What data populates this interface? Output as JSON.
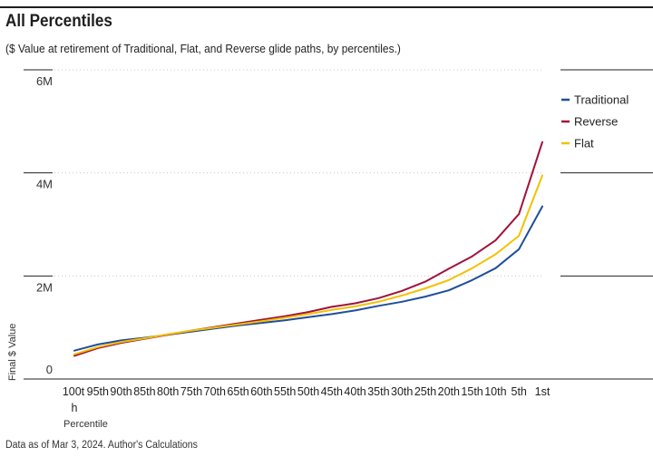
{
  "header": {
    "title": "All Percentiles",
    "subtitle": "($ Value at retirement of Traditional, Flat, and Reverse glide paths, by percentiles.)"
  },
  "footer": {
    "note": "Data as of Mar 3, 2024. Author's Calculations"
  },
  "chart_data": {
    "type": "line",
    "title": "All Percentiles",
    "xlabel": "Percentile",
    "ylabel": "Final $ Value",
    "categories": [
      "100th",
      "95th",
      "90th",
      "85th",
      "80th",
      "75th",
      "70th",
      "65th",
      "60th",
      "55th",
      "50th",
      "45th",
      "40th",
      "35th",
      "30th",
      "25th",
      "20th",
      "15th",
      "10th",
      "5th",
      "1st"
    ],
    "ylim": [
      0,
      6000000
    ],
    "y_ticks": [
      {
        "value": 0,
        "label": "0"
      },
      {
        "value": 2000000,
        "label": "2M"
      },
      {
        "value": 4000000,
        "label": "4M"
      },
      {
        "value": 6000000,
        "label": "6M"
      }
    ],
    "grid": true,
    "legend_position": "right",
    "series": [
      {
        "name": "Traditional",
        "color": "#1f4e9c",
        "values": [
          550000,
          670000,
          750000,
          800000,
          860000,
          920000,
          980000,
          1040000,
          1090000,
          1140000,
          1200000,
          1260000,
          1330000,
          1420000,
          1500000,
          1600000,
          1720000,
          1920000,
          2150000,
          2520000,
          3350000
        ]
      },
      {
        "name": "Reverse",
        "color": "#a0123b",
        "values": [
          450000,
          600000,
          700000,
          780000,
          860000,
          940000,
          1010000,
          1080000,
          1150000,
          1220000,
          1300000,
          1400000,
          1470000,
          1570000,
          1710000,
          1890000,
          2140000,
          2380000,
          2690000,
          3200000,
          4600000
        ]
      },
      {
        "name": "Flat",
        "color": "#f2c100",
        "values": [
          480000,
          620000,
          720000,
          790000,
          870000,
          940000,
          1000000,
          1060000,
          1120000,
          1190000,
          1260000,
          1340000,
          1410000,
          1500000,
          1620000,
          1760000,
          1920000,
          2150000,
          2420000,
          2780000,
          3950000
        ]
      }
    ]
  }
}
